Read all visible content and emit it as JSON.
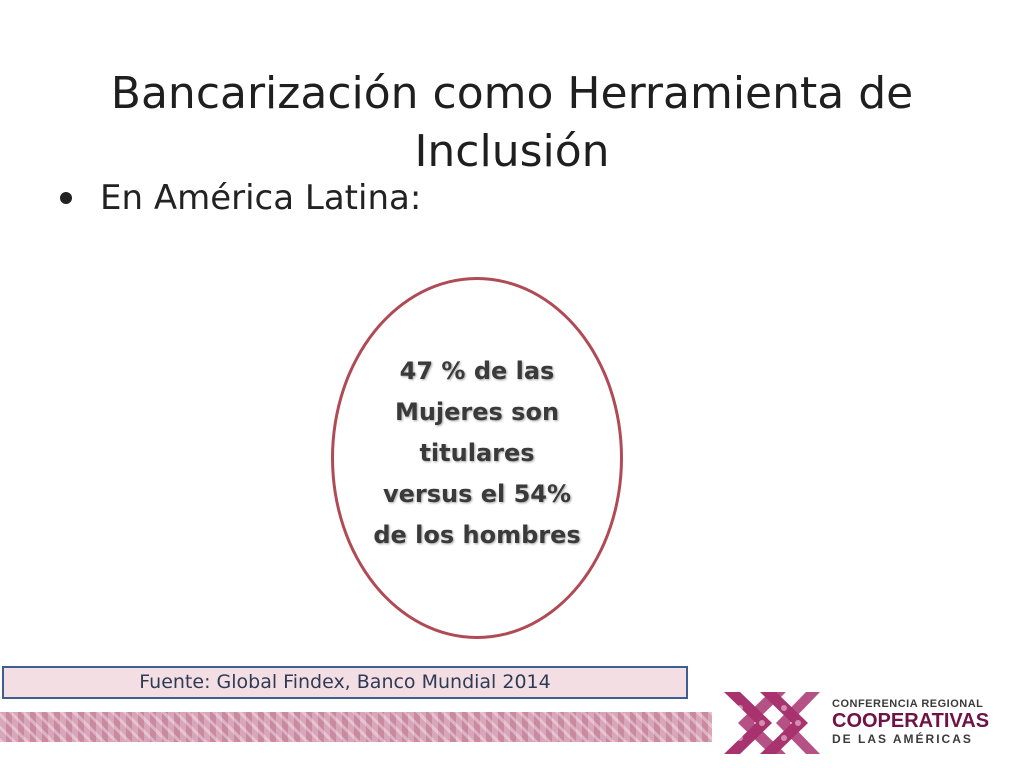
{
  "slide": {
    "title_line1": "Bancarización como Herramienta de",
    "title_line2": "Inclusión",
    "bullet": "En América Latina:",
    "oval_text": "47 % de las Mujeres son titulares versus el 54% de los hombres",
    "source": "Fuente: Global Findex, Banco Mundial 2014"
  },
  "logo": {
    "line1": "CONFERENCIA REGIONAL",
    "line2": "COOPERATIVAS",
    "line3": "DE LAS AMÉRICAS"
  },
  "colors": {
    "oval_border": "#b04a55",
    "source_bg": "#f3dfe3",
    "source_border": "#3d5f8f",
    "brand": "#6f1245"
  }
}
